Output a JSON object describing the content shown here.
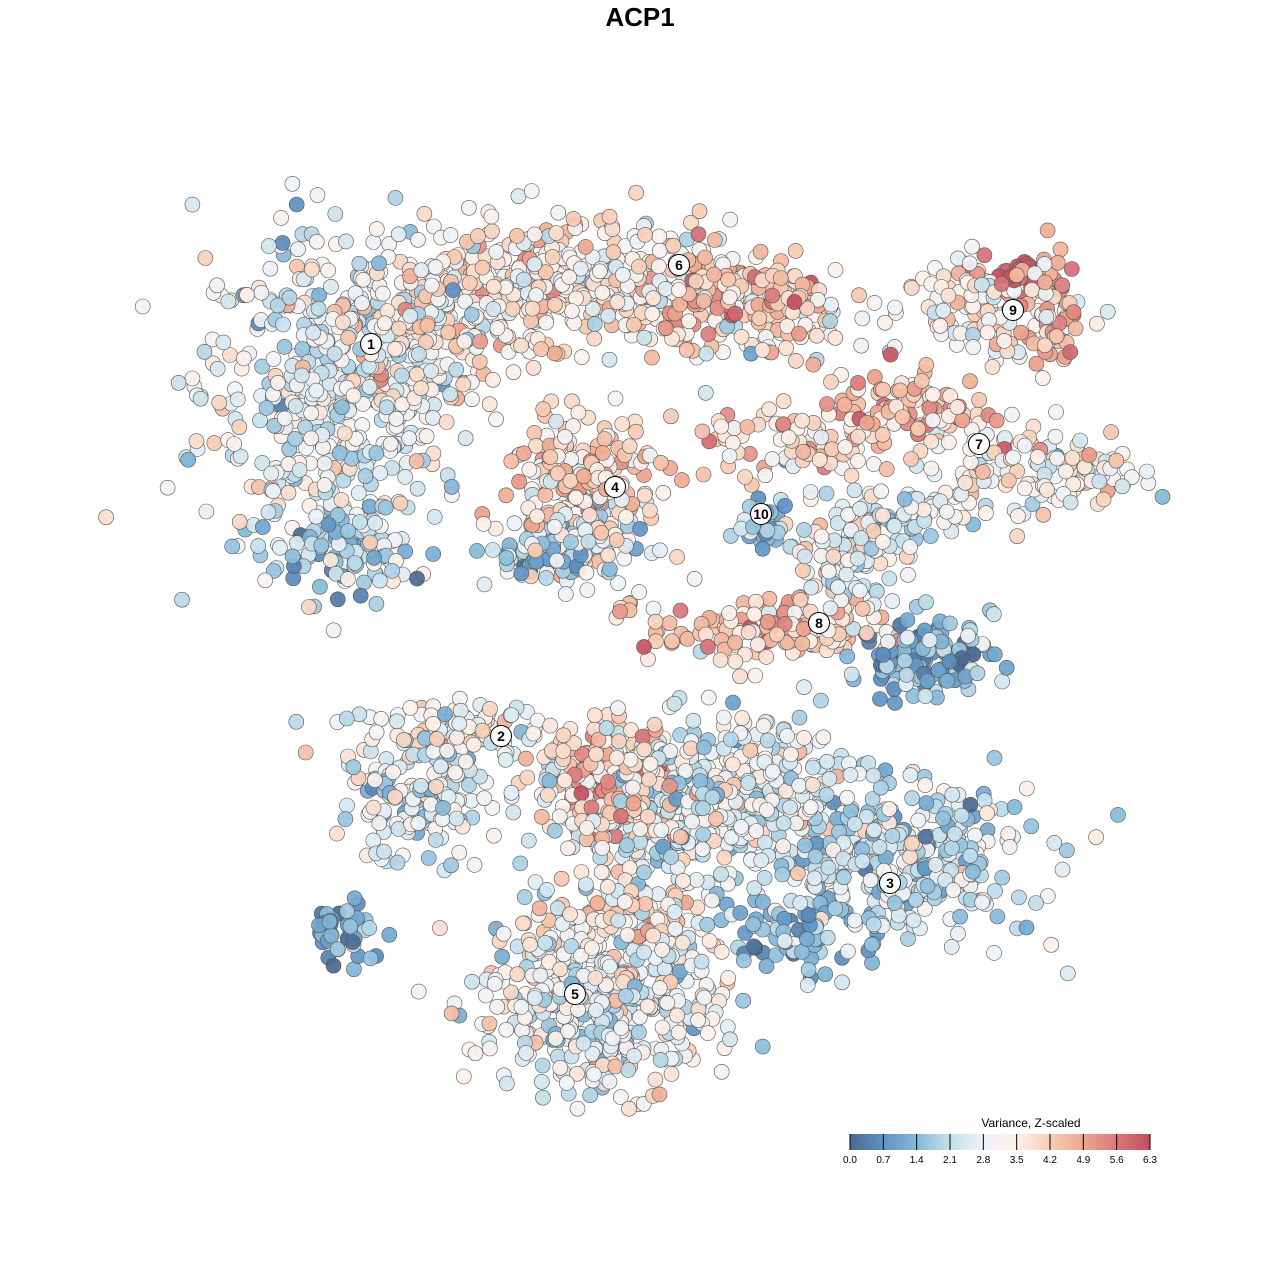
{
  "chart_data": {
    "type": "scatter",
    "title": "ACP1",
    "xlabel": "",
    "ylabel": "",
    "grid": false,
    "legend": {
      "title": "Variance, Z-scaled",
      "placement": "bottom-right",
      "ticks": [
        "0.0",
        "0.7",
        "1.4",
        "2.1",
        "2.8",
        "3.5",
        "4.2",
        "4.9",
        "5.6",
        "6.3"
      ],
      "range": [
        0,
        6.3
      ],
      "colors": [
        "#4a6890",
        "#5e93c5",
        "#84b9d9",
        "#c4dfec",
        "#eef3f7",
        "#fdf1ea",
        "#f8cdb5",
        "#eea78e",
        "#d9777a",
        "#c24e5f"
      ]
    },
    "point_note_values_estimated": true,
    "clusters": [
      {
        "label": "1",
        "label_pos": [
          -29.4,
          29.6
        ],
        "blobs": [
          {
            "center": [
              -33,
              25
            ],
            "spread": [
              9,
              11
            ],
            "n": 520,
            "mean": 2.7
          },
          {
            "center": [
              -22,
              32
            ],
            "spread": [
              7,
              5
            ],
            "n": 180,
            "mean": 3.6
          },
          {
            "center": [
              -32,
              9
            ],
            "spread": [
              4,
              3
            ],
            "n": 80,
            "mean": 2.0
          }
        ]
      },
      {
        "label": "6",
        "label_pos": [
          1.4,
          37.5
        ],
        "blobs": [
          {
            "center": [
              -10,
              36
            ],
            "spread": [
              11,
              4
            ],
            "n": 320,
            "mean": 3.3
          },
          {
            "center": [
              6,
              35
            ],
            "spread": [
              7,
              3
            ],
            "n": 170,
            "mean": 4.4
          },
          {
            "center": [
              10,
              31
            ],
            "spread": [
              10,
              3
            ],
            "n": 70,
            "mean": 3.4
          }
        ]
      },
      {
        "label": "9",
        "label_pos": [
          34.8,
          33
        ],
        "blobs": [
          {
            "center": [
              32,
              33
            ],
            "spread": [
              6,
              3
            ],
            "n": 110,
            "mean": 3.3
          },
          {
            "center": [
              36,
              36
            ],
            "spread": [
              2.5,
              2
            ],
            "n": 40,
            "mean": 5.6
          },
          {
            "center": [
              39,
              31
            ],
            "spread": [
              2,
              3
            ],
            "n": 35,
            "mean": 4.6
          }
        ]
      },
      {
        "label": "7",
        "label_pos": [
          31.4,
          19.6
        ],
        "blobs": [
          {
            "center": [
              25,
              23
            ],
            "spread": [
              5,
              2.5
            ],
            "n": 90,
            "mean": 4.4
          },
          {
            "center": [
              37,
              17
            ],
            "spread": [
              7,
              3
            ],
            "n": 130,
            "mean": 3.3
          },
          {
            "center": [
              13,
              20
            ],
            "spread": [
              7,
              2.5
            ],
            "n": 80,
            "mean": 3.9
          }
        ]
      },
      {
        "label": "4",
        "label_pos": [
          -5,
          15.3
        ],
        "blobs": [
          {
            "center": [
              -8,
              16
            ],
            "spread": [
              5,
              4
            ],
            "n": 180,
            "mean": 4.1
          },
          {
            "center": [
              -9,
              10
            ],
            "spread": [
              5,
              3
            ],
            "n": 120,
            "mean": 2.6
          },
          {
            "center": [
              -12,
              8.5
            ],
            "spread": [
              3,
              1.5
            ],
            "n": 50,
            "mean": 1.3
          }
        ]
      },
      {
        "label": "10",
        "label_pos": [
          9.6,
          12.6
        ],
        "blobs": [
          {
            "center": [
              9.8,
              11.5
            ],
            "spread": [
              1.6,
              2
            ],
            "n": 35,
            "mean": 1.6
          }
        ]
      },
      {
        "label": "8",
        "label_pos": [
          15.4,
          1.7
        ],
        "blobs": [
          {
            "center": [
              10,
              1
            ],
            "spread": [
              8,
              2.2
            ],
            "n": 150,
            "mean": 4.2
          },
          {
            "center": [
              26,
              -1.5
            ],
            "spread": [
              4.5,
              2.5
            ],
            "n": 130,
            "mean": 1.3
          },
          {
            "center": [
              19,
              9
            ],
            "spread": [
              4,
              4
            ],
            "n": 110,
            "mean": 2.9
          },
          {
            "center": [
              25,
              13
            ],
            "spread": [
              4,
              1.5
            ],
            "n": 40,
            "mean": 2.3
          }
        ]
      },
      {
        "label": "2",
        "label_pos": [
          -16.4,
          -9.6
        ],
        "blobs": [
          {
            "center": [
              -25,
              -16
            ],
            "spread": [
              5,
              4
            ],
            "n": 150,
            "mean": 2.4
          },
          {
            "center": [
              -21,
              -9
            ],
            "spread": [
              6,
              2
            ],
            "n": 100,
            "mean": 3.3
          }
        ]
      },
      {
        "label": "",
        "label_pos": null,
        "blobs": [
          {
            "center": [
              2,
              -17
            ],
            "spread": [
              10,
              6
            ],
            "n": 420,
            "mean": 2.6
          },
          {
            "center": [
              -5,
              -14
            ],
            "spread": [
              5,
              4
            ],
            "n": 180,
            "mean": 4.3
          },
          {
            "center": [
              10,
              -13
            ],
            "spread": [
              6,
              4
            ],
            "n": 120,
            "mean": 3.0
          }
        ]
      },
      {
        "label": "3",
        "label_pos": [
          22.5,
          -24.3
        ],
        "blobs": [
          {
            "center": [
              23,
              -22
            ],
            "spread": [
              9,
              5
            ],
            "n": 380,
            "mean": 2.2
          },
          {
            "center": [
              13,
              -30
            ],
            "spread": [
              4,
              2.5
            ],
            "n": 70,
            "mean": 1.4
          }
        ]
      },
      {
        "label": "5",
        "label_pos": [
          -9,
          -35.4
        ],
        "blobs": [
          {
            "center": [
              -7,
              -36
            ],
            "spread": [
              8,
              6
            ],
            "n": 480,
            "mean": 2.9
          },
          {
            "center": [
              -3,
              -28
            ],
            "spread": [
              4,
              3
            ],
            "n": 60,
            "mean": 3.8
          }
        ]
      },
      {
        "label": "",
        "label_pos": null,
        "blobs": [
          {
            "center": [
              -32,
              -29
            ],
            "spread": [
              3,
              2
            ],
            "n": 40,
            "mean": 0.9
          }
        ]
      }
    ]
  }
}
